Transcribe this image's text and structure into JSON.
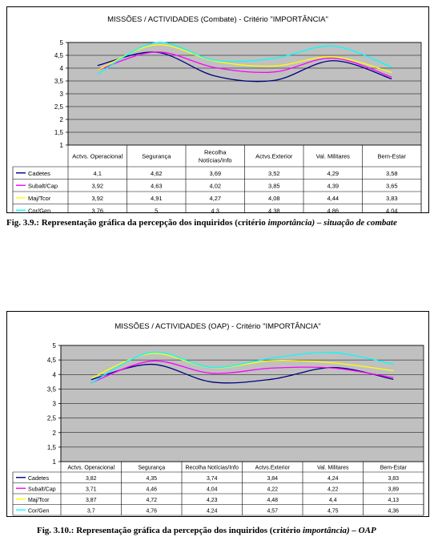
{
  "chart_data": [
    {
      "type": "line",
      "title": "MISSÕES / ACTIVIDADES (Combate) - Critério \"IMPORTÂNCIA\"",
      "categories": [
        "Actvs. Operacional",
        "Segurança",
        "Recolha Notícias/Info",
        "Actvs.Exterior",
        "Val. Militares",
        "Bem-Estar"
      ],
      "category_lines": [
        [
          "Actvs. Operacional"
        ],
        [
          "Segurança"
        ],
        [
          "Recolha",
          "Notícias/Info"
        ],
        [
          "Actvs.Exterior"
        ],
        [
          "Val. Militares"
        ],
        [
          "Bem-Estar"
        ]
      ],
      "ylim": [
        1,
        5
      ],
      "yticks": [
        "1",
        "1,5",
        "2",
        "2,5",
        "3",
        "3,5",
        "4",
        "4,5",
        "5"
      ],
      "grid": true,
      "legend": "table-below",
      "series": [
        {
          "name": "Cadetes",
          "color": "#000080",
          "values": [
            4.1,
            4.62,
            3.69,
            3.52,
            4.29,
            3.58
          ],
          "labels": [
            "4,1",
            "4,62",
            "3,69",
            "3,52",
            "4,29",
            "3,58"
          ]
        },
        {
          "name": "Subalt/Cap",
          "color": "#ff00ff",
          "values": [
            3.92,
            4.63,
            4.02,
            3.85,
            4.39,
            3.65
          ],
          "labels": [
            "3,92",
            "4,63",
            "4,02",
            "3,85",
            "4,39",
            "3,65"
          ]
        },
        {
          "name": "Maj/Tcor",
          "color": "#ffff00",
          "values": [
            3.92,
            4.91,
            4.27,
            4.08,
            4.44,
            3.83
          ],
          "labels": [
            "3,92",
            "4,91",
            "4,27",
            "4,08",
            "4,44",
            "3,83"
          ]
        },
        {
          "name": "Cor/Gen",
          "color": "#00ffff",
          "values": [
            3.76,
            5,
            4.3,
            4.38,
            4.86,
            4.04
          ],
          "labels": [
            "3,76",
            "5",
            "4,3",
            "4,38",
            "4,86",
            "4,04"
          ]
        }
      ]
    },
    {
      "type": "line",
      "title": "MISSÕES / ACTIVIDADES (OAP) - Critério \"IMPORTÂNCIA\"",
      "categories": [
        "Actvs. Operacional",
        "Segurança",
        "Recolha Notícias/Info",
        "Actvs.Exterior",
        "Val. Militares",
        "Bem-Estar"
      ],
      "category_lines": [
        [
          "Actvs. Operacional"
        ],
        [
          "Segurança"
        ],
        [
          "Recolha Notícias/Info"
        ],
        [
          "Actvs.Exterior"
        ],
        [
          "Val. Militares"
        ],
        [
          "Bem-Estar"
        ]
      ],
      "ylim": [
        1,
        5
      ],
      "yticks": [
        "1",
        "1,5",
        "2",
        "2,5",
        "3",
        "3,5",
        "4",
        "4,5",
        "5"
      ],
      "grid": true,
      "legend": "table-below",
      "series": [
        {
          "name": "Cadetes",
          "color": "#000080",
          "values": [
            3.82,
            4.35,
            3.74,
            3.84,
            4.24,
            3.83
          ],
          "labels": [
            "3,82",
            "4,35",
            "3,74",
            "3,84",
            "4,24",
            "3,83"
          ]
        },
        {
          "name": "Subalt/Cap",
          "color": "#ff00ff",
          "values": [
            3.71,
            4.46,
            4.04,
            4.22,
            4.22,
            3.89
          ],
          "labels": [
            "3,71",
            "4,46",
            "4,04",
            "4,22",
            "4,22",
            "3,89"
          ]
        },
        {
          "name": "Maj/Tcor",
          "color": "#ffff00",
          "values": [
            3.87,
            4.72,
            4.23,
            4.48,
            4.4,
            4.13
          ],
          "labels": [
            "3,87",
            "4,72",
            "4,23",
            "4,48",
            "4,4",
            "4,13"
          ]
        },
        {
          "name": "Cor/Gen",
          "color": "#00ffff",
          "values": [
            3.7,
            4.76,
            4.24,
            4.57,
            4.75,
            4.36
          ],
          "labels": [
            "3,7",
            "4,76",
            "4,24",
            "4,57",
            "4,75",
            "4,36"
          ]
        }
      ]
    }
  ],
  "captions": [
    {
      "prefix": "Fig. 3.9.: Representação gráfica da percepção dos inquiridos (critério ",
      "emph": "importância",
      "suffix": ") – situação de combate"
    },
    {
      "prefix": "Fig. 3.10.: Representação gráfica da percepção dos inquiridos (critério ",
      "emph": "importância",
      "suffix": ") – OAP"
    }
  ],
  "colors": {
    "plot_bg": "#c0c0c0",
    "grid": "#000000"
  }
}
